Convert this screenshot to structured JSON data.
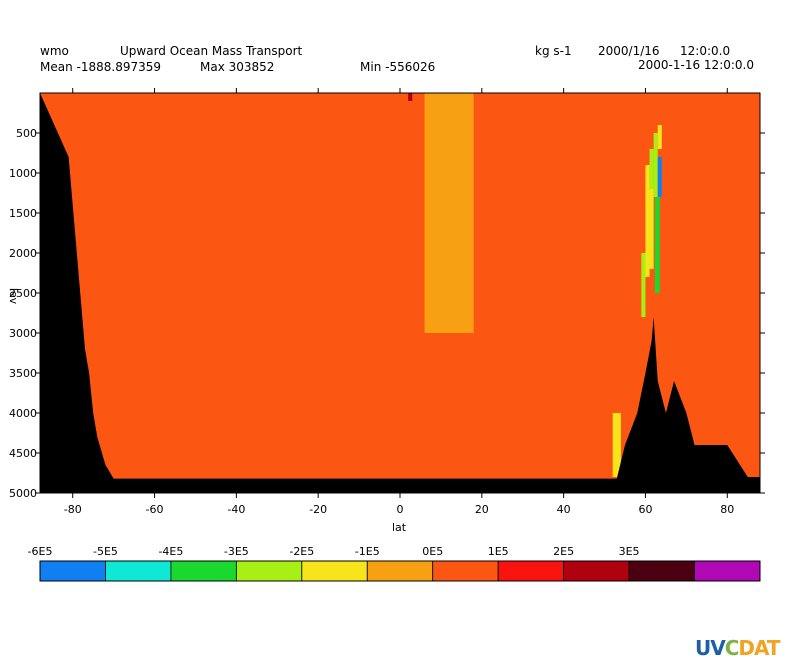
{
  "header": {
    "var_name": "wmo",
    "long_name": "Upward Ocean Mass Transport",
    "units": "kg s-1",
    "date": "2000/1/16",
    "time": "12:0:0.0",
    "mean_label": "Mean -1888.897359",
    "max_label": "Max 303852",
    "min_label": "Min -556026",
    "datetime": "2000-1-16 12:0:0.0"
  },
  "logo": {
    "part1": "UV",
    "part2": "C",
    "part3": "DAT"
  },
  "chart_data": {
    "type": "heatmap",
    "title": "Upward Ocean Mass Transport",
    "xlabel": "lat",
    "ylabel": "lev",
    "xlim": [
      -88,
      88
    ],
    "ylim": [
      5000,
      0
    ],
    "xticks": [
      -80,
      -60,
      -40,
      -20,
      0,
      20,
      40,
      60,
      80
    ],
    "yticks": [
      500,
      1000,
      1500,
      2000,
      2500,
      3000,
      3500,
      4000,
      4500,
      5000
    ],
    "colorbar": {
      "tick_labels": [
        "-6E5",
        "-5E5",
        "-4E5",
        "-3E5",
        "-2E5",
        "-1E5",
        "0E5",
        "1E5",
        "2E5",
        "3E5"
      ],
      "levels": [
        -600000,
        -500000,
        -400000,
        -300000,
        -200000,
        -100000,
        0,
        100000,
        200000,
        300000,
        400000
      ],
      "colors": [
        "#0f7ff2",
        "#10e8d6",
        "#1ad82d",
        "#a8f014",
        "#f7e41a",
        "#f7a012",
        "#fb5712",
        "#f9130f",
        "#b00010",
        "#4a0010",
        "#b008b4"
      ]
    },
    "background_value": 50000,
    "mask_bottom": [
      {
        "lat": -88,
        "depth": 0
      },
      {
        "lat": -81,
        "depth": 800
      },
      {
        "lat": -77,
        "depth": 3200
      },
      {
        "lat": -76,
        "depth": 3500
      },
      {
        "lat": -75,
        "depth": 4000
      },
      {
        "lat": -74,
        "depth": 4300
      },
      {
        "lat": -72,
        "depth": 4650
      },
      {
        "lat": -70,
        "depth": 4820
      },
      {
        "lat": 53,
        "depth": 4820
      },
      {
        "lat": 55,
        "depth": 4400
      },
      {
        "lat": 58,
        "depth": 4000
      },
      {
        "lat": 60,
        "depth": 3500
      },
      {
        "lat": 61.5,
        "depth": 3100
      },
      {
        "lat": 62,
        "depth": 2800
      },
      {
        "lat": 62.5,
        "depth": 3200
      },
      {
        "lat": 63,
        "depth": 3600
      },
      {
        "lat": 65,
        "depth": 4000
      },
      {
        "lat": 67,
        "depth": 3600
      },
      {
        "lat": 70,
        "depth": 4000
      },
      {
        "lat": 72,
        "depth": 4400
      },
      {
        "lat": 80,
        "depth": 4400
      },
      {
        "lat": 85,
        "depth": 4800
      },
      {
        "lat": 88,
        "depth": 4800
      }
    ],
    "anomalies": [
      {
        "lat0": 0,
        "lat1": 3,
        "lev0": 0,
        "lev1": 100,
        "value": 250000
      },
      {
        "lat0": -2,
        "lat1": 2,
        "lev0": 0,
        "lev1": 3500,
        "value": 90000
      },
      {
        "lat0": 6,
        "lat1": 18,
        "lev0": 0,
        "lev1": 3000,
        "value": -20000
      },
      {
        "lat0": 52,
        "lat1": 54,
        "lev0": 4000,
        "lev1": 4800,
        "value": -150000
      },
      {
        "lat0": 59,
        "lat1": 60,
        "lev0": 2000,
        "lev1": 2800,
        "value": -220000
      },
      {
        "lat0": 60,
        "lat1": 61,
        "lev0": 900,
        "lev1": 2300,
        "value": -200000
      },
      {
        "lat0": 61,
        "lat1": 62,
        "lev0": 700,
        "lev1": 1200,
        "value": -250000
      },
      {
        "lat0": 61,
        "lat1": 62,
        "lev0": 1200,
        "lev1": 2200,
        "value": -120000
      },
      {
        "lat0": 62,
        "lat1": 63,
        "lev0": 500,
        "lev1": 1300,
        "value": -300000
      },
      {
        "lat0": 62.3,
        "lat1": 63.5,
        "lev0": 1300,
        "lev1": 2500,
        "value": -400000
      },
      {
        "lat0": 63,
        "lat1": 64,
        "lev0": 800,
        "lev1": 1300,
        "value": -550000
      },
      {
        "lat0": 63,
        "lat1": 64,
        "lev0": 400,
        "lev1": 700,
        "value": -200000
      }
    ]
  }
}
